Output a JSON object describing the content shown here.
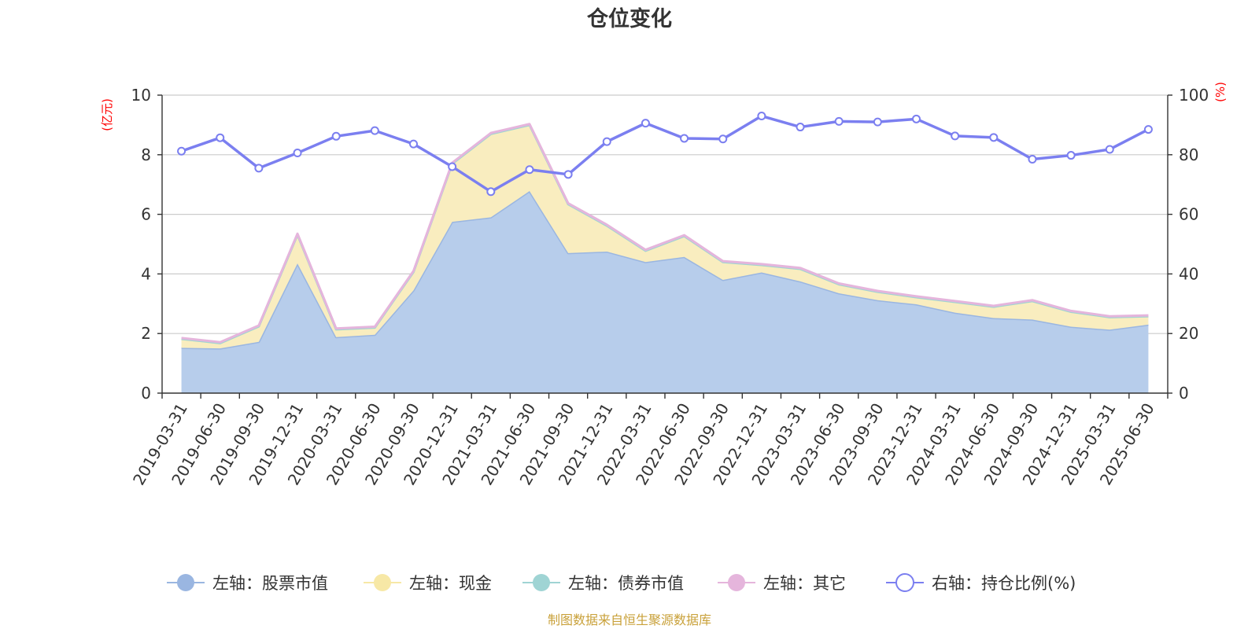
{
  "chart_data": {
    "type": "area",
    "title": "仓位变化",
    "source": "制图数据来自恒生聚源数据库",
    "left_axis": {
      "unit": "(亿元)",
      "ylim": [
        0,
        10
      ],
      "ticks": [
        0,
        2,
        4,
        6,
        8,
        10
      ]
    },
    "right_axis": {
      "unit": "(%)",
      "ylim": [
        0,
        100
      ],
      "ticks": [
        0,
        20,
        40,
        60,
        80,
        100
      ]
    },
    "grid": true,
    "legend_position": "bottom",
    "categories": [
      "2019-03-31",
      "2019-06-30",
      "2019-09-30",
      "2019-12-31",
      "2020-03-31",
      "2020-06-30",
      "2020-09-30",
      "2020-12-31",
      "2021-03-31",
      "2021-06-30",
      "2021-09-30",
      "2021-12-31",
      "2022-03-31",
      "2022-06-30",
      "2022-09-30",
      "2022-12-31",
      "2023-03-31",
      "2023-06-30",
      "2023-09-30",
      "2023-12-31",
      "2024-03-31",
      "2024-06-30",
      "2024-09-30",
      "2024-12-31",
      "2025-03-31",
      "2025-06-30"
    ],
    "series": [
      {
        "name": "左轴：股票市值",
        "axis": "left",
        "stack": true,
        "color": "#9ab6e1",
        "fill": "#b7cdeb",
        "values": [
          1.52,
          1.5,
          1.72,
          4.35,
          1.88,
          1.96,
          3.45,
          5.75,
          5.9,
          6.78,
          4.7,
          4.75,
          4.4,
          4.57,
          3.8,
          4.05,
          3.75,
          3.35,
          3.12,
          2.98,
          2.7,
          2.52,
          2.47,
          2.23,
          2.13,
          2.3
        ]
      },
      {
        "name": "左轴：现金",
        "axis": "left",
        "stack": true,
        "color": "#f7e8a6",
        "fill": "#f9edbf",
        "values": [
          0.3,
          0.18,
          0.52,
          0.97,
          0.26,
          0.24,
          0.62,
          1.95,
          2.8,
          2.22,
          1.64,
          0.87,
          0.38,
          0.7,
          0.6,
          0.25,
          0.42,
          0.3,
          0.28,
          0.24,
          0.36,
          0.38,
          0.62,
          0.5,
          0.42,
          0.28
        ]
      },
      {
        "name": "左轴：债券市值",
        "axis": "left",
        "stack": true,
        "color": "#9fd4d4",
        "fill": "#bfe3e3",
        "values": [
          0,
          0,
          0,
          0,
          0,
          0,
          0,
          0,
          0,
          0,
          0,
          0,
          0,
          0,
          0,
          0,
          0,
          0,
          0,
          0,
          0,
          0,
          0,
          0,
          0,
          0
        ]
      },
      {
        "name": "左轴：其它",
        "axis": "left",
        "stack": true,
        "color": "#e5b5dc",
        "fill": "#f0d2ea",
        "values": [
          0.03,
          0.03,
          0.03,
          0.03,
          0.03,
          0.03,
          0.03,
          0.03,
          0.03,
          0.03,
          0.03,
          0.03,
          0.03,
          0.03,
          0.03,
          0.03,
          0.03,
          0.03,
          0.03,
          0.03,
          0.03,
          0.03,
          0.03,
          0.03,
          0.03,
          0.03
        ]
      },
      {
        "name": "右轴：持仓比例(%)",
        "axis": "right",
        "stack": false,
        "color": "#7b7ff0",
        "values": [
          81.2,
          85.7,
          75.5,
          80.6,
          86.2,
          88.1,
          83.6,
          76.0,
          67.6,
          75.0,
          73.4,
          84.4,
          90.6,
          85.5,
          85.3,
          93.0,
          89.3,
          91.2,
          91.0,
          92.0,
          86.3,
          85.8,
          78.5,
          79.8,
          81.8,
          88.5
        ]
      }
    ]
  }
}
